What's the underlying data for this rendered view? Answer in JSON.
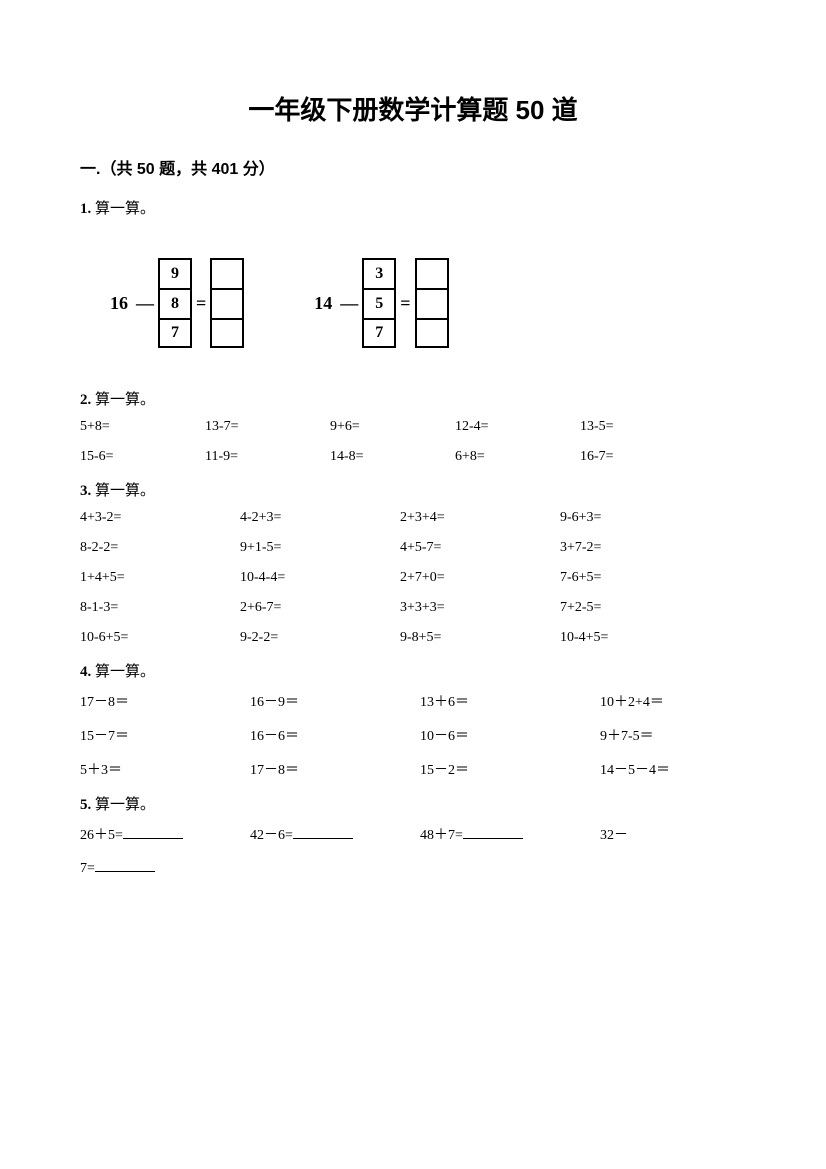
{
  "title": "一年级下册数学计算题 50 道",
  "section": "一.（共 50 题，共 401 分）",
  "q1": {
    "label_num": "1.",
    "label_text": " 算一算。",
    "d1": {
      "lead": "16",
      "op": "—",
      "left": [
        "9",
        "8",
        "7"
      ],
      "eq": "="
    },
    "d2": {
      "lead": "14",
      "op": "—",
      "left": [
        "3",
        "5",
        "7"
      ],
      "eq": "="
    }
  },
  "q2": {
    "label_num": "2.",
    "label_text": " 算一算。",
    "rows": [
      [
        "5+8=",
        "13-7=",
        "9+6=",
        "12-4=",
        "13-5="
      ],
      [
        "15-6=",
        "11-9=",
        "14-8=",
        "6+8=",
        "16-7="
      ]
    ]
  },
  "q3": {
    "label_num": "3.",
    "label_text": " 算一算。",
    "rows": [
      [
        "4+3-2=",
        "4-2+3=",
        "2+3+4=",
        "9-6+3="
      ],
      [
        "8-2-2=",
        "9+1-5=",
        "4+5-7=",
        "3+7-2="
      ],
      [
        "1+4+5=",
        "10-4-4=",
        "2+7+0=",
        "7-6+5="
      ],
      [
        "8-1-3=",
        "2+6-7=",
        "3+3+3=",
        "7+2-5="
      ],
      [
        "10-6+5=",
        "9-2-2=",
        "9-8+5=",
        "10-4+5="
      ]
    ]
  },
  "q4": {
    "label_num": "4.",
    "label_text": " 算一算。",
    "rows": [
      [
        "17－8＝",
        "16－9＝",
        "13＋6＝",
        "10＋2+4＝"
      ],
      [
        "15－7＝",
        "16－6＝",
        "10－6＝",
        "9＋7-5＝"
      ],
      [
        "5＋3＝",
        "17－8＝",
        "15－2＝",
        "14－5－4＝"
      ]
    ]
  },
  "q5": {
    "label_num": "5.",
    "label_text": " 算一算。",
    "r1": [
      "26＋5=",
      "42－6=",
      "48＋7=",
      "32－"
    ],
    "trail": "7="
  }
}
